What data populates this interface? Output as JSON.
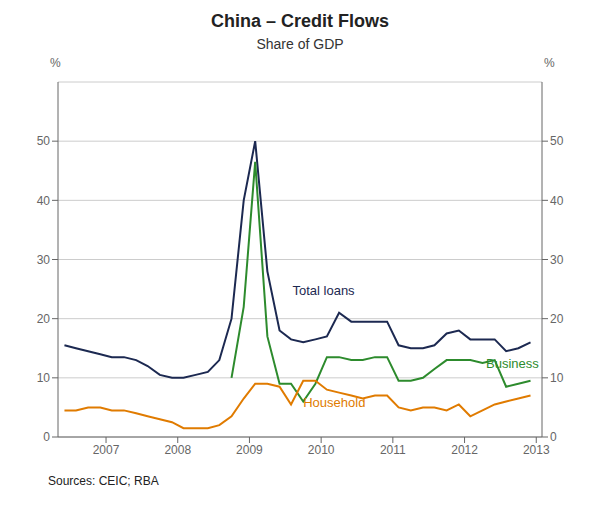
{
  "chart_data": {
    "type": "line",
    "title": "China – Credit Flows",
    "subtitle": "Share of GDP",
    "ylabel": "%",
    "y2label": "%",
    "source": "Sources: CEIC; RBA",
    "x": [
      2006.42,
      2006.58,
      2006.75,
      2006.92,
      2007.08,
      2007.25,
      2007.42,
      2007.58,
      2007.75,
      2007.92,
      2008.08,
      2008.25,
      2008.42,
      2008.58,
      2008.75,
      2008.92,
      2009.08,
      2009.25,
      2009.42,
      2009.58,
      2009.75,
      2009.92,
      2010.08,
      2010.25,
      2010.42,
      2010.58,
      2010.75,
      2010.92,
      2011.08,
      2011.25,
      2011.42,
      2011.58,
      2011.75,
      2011.92,
      2012.08,
      2012.25,
      2012.42,
      2012.58,
      2012.75,
      2012.92
    ],
    "xlim": [
      2006.33,
      2013.08
    ],
    "xticks": [
      2007,
      2008,
      2009,
      2010,
      2011,
      2012,
      2013
    ],
    "ylim": [
      0,
      60
    ],
    "yticks": [
      0,
      10,
      20,
      30,
      40,
      50
    ],
    "y2lim": [
      0,
      60
    ],
    "y2ticks": [
      0,
      10,
      20,
      30,
      40,
      50
    ],
    "grid": true,
    "series": [
      {
        "name": "Total loans",
        "color": "#1c2951",
        "values": [
          15.5,
          15.0,
          14.5,
          14.0,
          13.5,
          13.5,
          13.0,
          12.0,
          10.5,
          10.0,
          10.0,
          10.5,
          11.0,
          13.0,
          20.0,
          40.0,
          50.0,
          28.0,
          18.0,
          16.5,
          16.0,
          16.5,
          17.0,
          21.0,
          19.5,
          19.5,
          19.5,
          19.5,
          15.5,
          15.0,
          15.0,
          15.5,
          17.5,
          18.0,
          16.5,
          16.5,
          16.5,
          14.5,
          15.0,
          16.0
        ]
      },
      {
        "name": "Business",
        "color": "#2d8b2d",
        "values": [
          null,
          null,
          null,
          null,
          null,
          null,
          null,
          null,
          null,
          null,
          null,
          null,
          null,
          null,
          10.0,
          22.0,
          46.5,
          17.0,
          9.0,
          9.0,
          6.0,
          9.0,
          13.5,
          13.5,
          13.0,
          13.0,
          13.5,
          13.5,
          9.5,
          9.5,
          10.0,
          11.5,
          13.0,
          13.0,
          13.0,
          12.5,
          13.0,
          8.5,
          9.0,
          9.5
        ]
      },
      {
        "name": "Household",
        "color": "#e07b00",
        "values": [
          4.5,
          4.5,
          5.0,
          5.0,
          4.5,
          4.5,
          4.0,
          3.5,
          3.0,
          2.5,
          1.5,
          1.5,
          1.5,
          2.0,
          3.5,
          6.5,
          9.0,
          9.0,
          8.5,
          5.5,
          9.5,
          9.5,
          8.0,
          7.5,
          7.0,
          6.5,
          7.0,
          7.0,
          5.0,
          4.5,
          5.0,
          5.0,
          4.5,
          5.5,
          3.5,
          4.5,
          5.5,
          6.0,
          6.5,
          7.0
        ]
      }
    ],
    "annotations": [
      {
        "x": 2009.6,
        "y": 23.5,
        "text": "Total loans",
        "color": "#1c2951"
      },
      {
        "x": 2012.3,
        "y": 11.2,
        "text": "Business",
        "color": "#2d8b2d"
      },
      {
        "x": 2009.75,
        "y": 4.5,
        "text": "Household",
        "color": "#e07b00"
      }
    ]
  }
}
